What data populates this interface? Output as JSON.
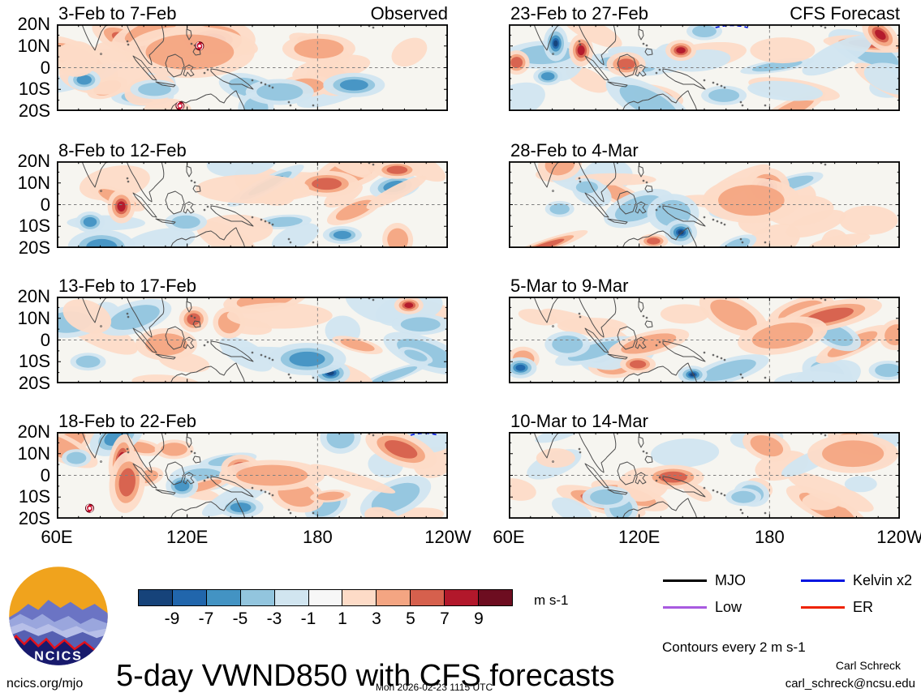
{
  "panels": [
    {
      "title": "3-Feb to 7-Feb",
      "corner": "Observed",
      "group": "Observed"
    },
    {
      "title": "23-Feb to 27-Feb",
      "corner": "CFS Forecast",
      "group": "CFS Forecast"
    },
    {
      "title": "8-Feb to 12-Feb",
      "corner": "",
      "group": "Observed"
    },
    {
      "title": "28-Feb to 4-Mar",
      "corner": "",
      "group": "CFS Forecast"
    },
    {
      "title": "13-Feb to 17-Feb",
      "corner": "",
      "group": "Observed"
    },
    {
      "title": "5-Mar to 9-Mar",
      "corner": "",
      "group": "CFS Forecast"
    },
    {
      "title": "18-Feb to 22-Feb",
      "corner": "",
      "group": "Observed"
    },
    {
      "title": "10-Mar to 14-Mar",
      "corner": "",
      "group": "CFS Forecast"
    }
  ],
  "axes": {
    "lat_labels": [
      "20N",
      "10N",
      "0",
      "10S",
      "20S"
    ],
    "lon_labels": [
      "60E",
      "120E",
      "180",
      "120W"
    ]
  },
  "colorbar": {
    "tick_labels": [
      "-9",
      "-7",
      "-5",
      "-3",
      "-1",
      "1",
      "3",
      "5",
      "7",
      "9"
    ],
    "colors": [
      "#16437a",
      "#2166ac",
      "#4393c3",
      "#92c5de",
      "#d1e5f0",
      "#f7f7f7",
      "#fddbc7",
      "#f4a582",
      "#d6604d",
      "#b2182b",
      "#6d0d20"
    ],
    "unit": "m s-1"
  },
  "legend": {
    "items": [
      {
        "label": "MJO",
        "color": "#000000"
      },
      {
        "label": "Kelvin x2",
        "color": "#0014e0"
      },
      {
        "label": "Low",
        "color": "#a85ae0"
      },
      {
        "label": "ER",
        "color": "#ee2200"
      }
    ],
    "note": "Contours every 2 m s-1"
  },
  "footer": {
    "title": "5-day VWND850 with CFS forecasts",
    "website": "ncics.org/mjo",
    "timestamp": "Mon 2026-02-23 1115 UTC",
    "author": "Carl Schreck",
    "email": "carl_schreck@ncsu.edu",
    "logo_text": "NCICS"
  },
  "chart_data": {
    "type": "heatmap",
    "title": "5-day VWND850 with CFS forecasts",
    "variable": "850-hPa meridional wind (VWND850) anomaly",
    "units": "m s-1",
    "fill_levels": [
      -9,
      -7,
      -5,
      -3,
      -1,
      1,
      3,
      5,
      7,
      9
    ],
    "contour_note": "Contours every 2 m s-1",
    "lon_range": [
      "60E",
      "120W"
    ],
    "lat_range": [
      "20S",
      "20N"
    ],
    "lon_ticks": [
      "60E",
      "120E",
      "180",
      "120W"
    ],
    "lat_ticks": [
      "20N",
      "10N",
      "0",
      "10S",
      "20S"
    ],
    "layout": "4 rows x 2 columns; left column = observed pentads, right column = CFS forecast pentads; dashed reference lines at the equator and the 180 meridian",
    "wave_overlays": [
      "MJO",
      "Kelvin x2",
      "Low",
      "ER"
    ],
    "panels": [
      {
        "title": "3-Feb to 7-Feb",
        "group": "Observed",
        "notable": "strong southerly (red) anomalies 125-150E north of equator; tropical-cyclone symbols near 8N/135E and 19S/120E"
      },
      {
        "title": "23-Feb to 27-Feb",
        "group": "CFS Forecast",
        "notable": "strong northerly (blue) core near 75E/10N beside southerly (red) core; red anomalies central Pacific; Kelvin contour near dateline at 20N"
      },
      {
        "title": "8-Feb to 12-Feb",
        "group": "Observed",
        "notable": "red anomaly near 90E equator; red band near 160E-180 around 10N"
      },
      {
        "title": "28-Feb to 4-Mar",
        "group": "CFS Forecast",
        "notable": "strong blue anomalies over New Guinea ~140E south of equator; red anomalies near dateline"
      },
      {
        "title": "13-Feb to 17-Feb",
        "group": "Observed",
        "notable": "strong blue anomalies 165-175E south of equator; weak red elsewhere"
      },
      {
        "title": "5-Mar to 9-Mar",
        "group": "CFS Forecast",
        "notable": "red band 5-15N east of the dateline; blue pocket near 145E/18S"
      },
      {
        "title": "18-Feb to 22-Feb",
        "group": "Observed",
        "notable": "intense red band near 85-90E from 10N to 10S; tropical-cyclone symbol near 15S/75E; blue Kelvin contour far NE"
      },
      {
        "title": "10-Mar to 14-Mar",
        "group": "CFS Forecast",
        "notable": "weak red anomalies over the Maritime Continent and NE Pacific"
      }
    ]
  }
}
